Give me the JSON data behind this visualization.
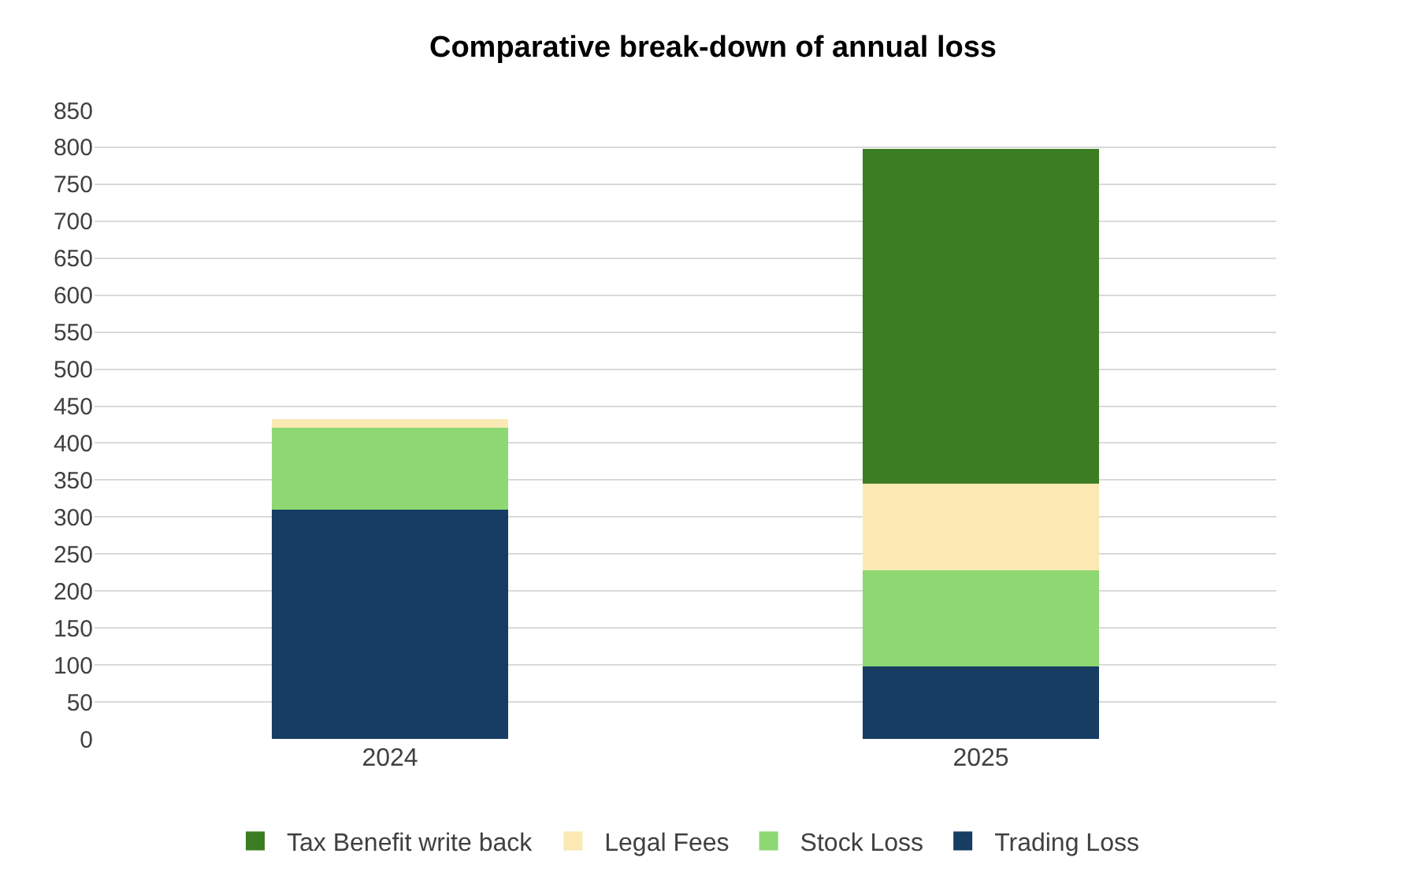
{
  "chart_data": {
    "type": "bar",
    "title": "Comparative break-down of annual loss",
    "categories": [
      "2024",
      "2025"
    ],
    "stacked": true,
    "series": [
      {
        "name": "Trading Loss",
        "color": "#173d63",
        "values": [
          310,
          98
        ]
      },
      {
        "name": "Stock Loss",
        "color": "#8dd873",
        "values": [
          111,
          130
        ]
      },
      {
        "name": "Legal Fees",
        "color": "#fbe9b4",
        "values": [
          11,
          117
        ]
      },
      {
        "name": "Tax Benefit write back",
        "color": "#3c7d24",
        "values": [
          0,
          453
        ]
      }
    ],
    "ylim": [
      0,
      850
    ],
    "yticks": [
      0,
      50,
      100,
      150,
      200,
      250,
      300,
      350,
      400,
      450,
      500,
      550,
      600,
      650,
      700,
      750,
      800,
      850
    ],
    "grid": "y",
    "legend": "bottom"
  }
}
